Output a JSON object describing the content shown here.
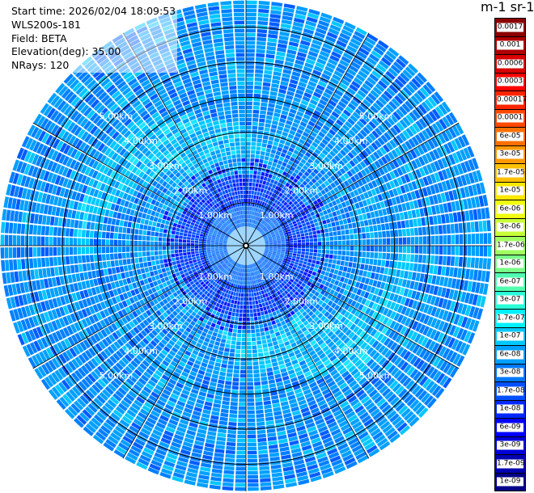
{
  "plot": {
    "start_time": "Start time: 2026/02/04 18:09:53",
    "instrument": "WLS200s-181",
    "field": "Field: BETA",
    "elevation": "Elevation(deg): 35.00",
    "nrays": "NRays: 120",
    "range_ring_labels": [
      "1.00km",
      "2.00km",
      "3.00km",
      "4.00km",
      "5.00km"
    ],
    "max_range_km": 6
  },
  "colorbar": {
    "title": "m-1 sr-1",
    "levels": [
      {
        "label": "0.0017",
        "color": "#8b0000"
      },
      {
        "label": "0.001",
        "color": "#b00000"
      },
      {
        "label": "0.0006",
        "color": "#d80000"
      },
      {
        "label": "0.0003",
        "color": "#ff0000"
      },
      {
        "label": "0.00017",
        "color": "#ff2400"
      },
      {
        "label": "0.0001",
        "color": "#ff4800"
      },
      {
        "label": "6e-05",
        "color": "#ff7000"
      },
      {
        "label": "3e-05",
        "color": "#ff9800"
      },
      {
        "label": "1.7e-05",
        "color": "#ffc000"
      },
      {
        "label": "1e-05",
        "color": "#ffe800"
      },
      {
        "label": "6e-06",
        "color": "#f0ff10"
      },
      {
        "label": "3e-06",
        "color": "#c8ff38"
      },
      {
        "label": "1.7e-06",
        "color": "#a0ff60"
      },
      {
        "label": "1e-06",
        "color": "#78ff88"
      },
      {
        "label": "6e-07",
        "color": "#50ffb0"
      },
      {
        "label": "3e-07",
        "color": "#28ffd8"
      },
      {
        "label": "1.7e-07",
        "color": "#00f0ff"
      },
      {
        "label": "1e-07",
        "color": "#00c8ff"
      },
      {
        "label": "6e-08",
        "color": "#00a0ff"
      },
      {
        "label": "3e-08",
        "color": "#0078ff"
      },
      {
        "label": "1.7e-08",
        "color": "#0050ff"
      },
      {
        "label": "1e-08",
        "color": "#0028ff"
      },
      {
        "label": "6e-09",
        "color": "#0000ff"
      },
      {
        "label": "3e-09",
        "color": "#0000d8"
      },
      {
        "label": "1.7e-09",
        "color": "#0000b0"
      },
      {
        "label": "1e-09",
        "color": "#000088"
      }
    ]
  }
}
